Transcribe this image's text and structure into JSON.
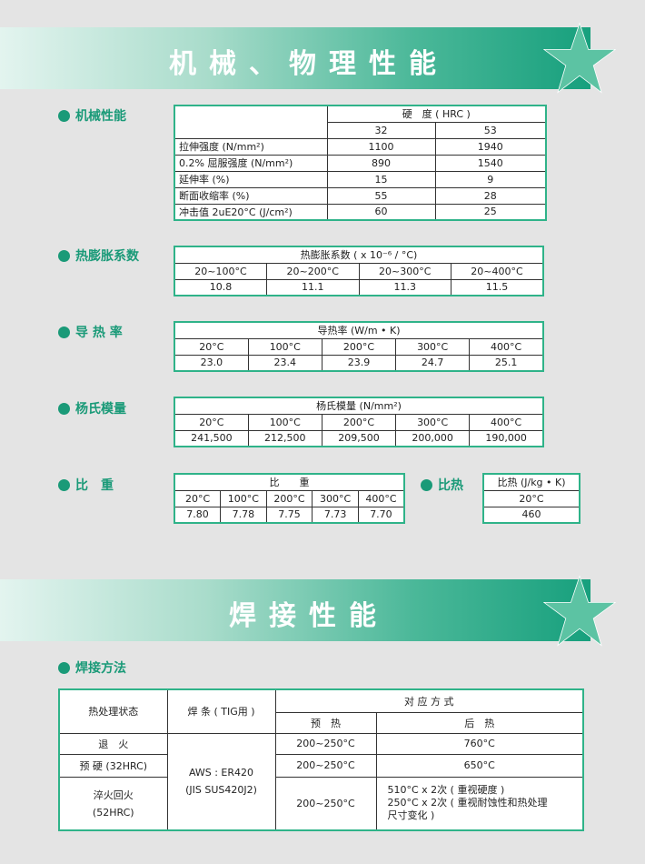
{
  "banner1": {
    "title": "机械、物理性能"
  },
  "banner2": {
    "title": "焊接性能"
  },
  "mech": {
    "label": "机械性能",
    "hardness_header": "硬　度 ( HRC )",
    "cols": [
      "32",
      "53"
    ],
    "rows": [
      {
        "name": "拉伸强度 (N/mm²)",
        "v": [
          "1100",
          "1940"
        ]
      },
      {
        "name": "0.2% 屈服强度 (N/mm²)",
        "v": [
          "890",
          "1540"
        ]
      },
      {
        "name": "延伸率 (%)",
        "v": [
          "15",
          "9"
        ]
      },
      {
        "name": "断面收缩率 (%)",
        "v": [
          "55",
          "28"
        ]
      },
      {
        "name": "冲击值 2uE20°C (J/cm²)",
        "v": [
          "60",
          "25"
        ]
      }
    ]
  },
  "expansion": {
    "label": "热膨胀系数",
    "header": "热膨胀系数 ( x 10⁻⁶ / °C)",
    "cols": [
      "20~100°C",
      "20~200°C",
      "20~300°C",
      "20~400°C"
    ],
    "values": [
      "10.8",
      "11.1",
      "11.3",
      "11.5"
    ]
  },
  "conductivity": {
    "label": "导 热 率",
    "header": "导热率 (W/m • K)",
    "cols": [
      "20°C",
      "100°C",
      "200°C",
      "300°C",
      "400°C"
    ],
    "values": [
      "23.0",
      "23.4",
      "23.9",
      "24.7",
      "25.1"
    ]
  },
  "modulus": {
    "label": "杨氏模量",
    "header": "杨氏模量 (N/mm²)",
    "cols": [
      "20°C",
      "100°C",
      "200°C",
      "300°C",
      "400°C"
    ],
    "values": [
      "241,500",
      "212,500",
      "209,500",
      "200,000",
      "190,000"
    ]
  },
  "density": {
    "label": "比　重",
    "header": "比　　重",
    "cols": [
      "20°C",
      "100°C",
      "200°C",
      "300°C",
      "400°C"
    ],
    "values": [
      "7.80",
      "7.78",
      "7.75",
      "7.73",
      "7.70"
    ]
  },
  "specific_heat": {
    "label": "比热",
    "header": "比热 (J/kg • K)",
    "col": "20°C",
    "value": "460"
  },
  "welding": {
    "label": "焊接方法",
    "h_state": "热处理状态",
    "h_rod": "焊 条 ( TIG用 )",
    "h_method": "对 应 方 式",
    "h_pre": "预　热",
    "h_post": "后　热",
    "rod": [
      "AWS : ER420",
      "(JIS SUS420J2)"
    ],
    "rows": [
      {
        "state": "退　火",
        "pre": "200~250°C",
        "post": "760°C"
      },
      {
        "state": "预 硬 (32HRC)",
        "pre": "200~250°C",
        "post": "650°C"
      },
      {
        "state": "淬火回火",
        "state2": "(52HRC)",
        "pre": "200~250°C",
        "post": "510°C x 2次 ( 重视硬度 )",
        "post2": "250°C x 2次 ( 重视耐蚀性和热处理",
        "post3": "尺寸变化 )"
      }
    ]
  },
  "colors": {
    "accent": "#1a9a78",
    "border": "#2fb389"
  }
}
